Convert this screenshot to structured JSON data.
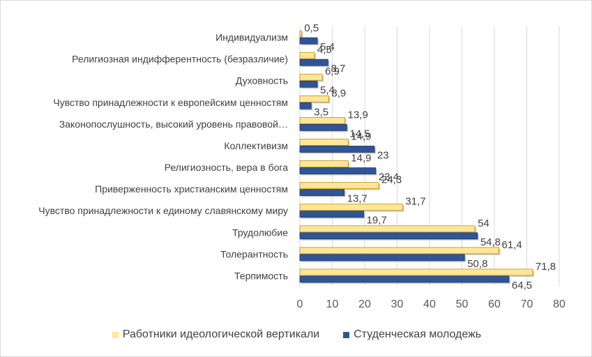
{
  "chart_data": {
    "type": "bar",
    "orientation": "horizontal",
    "categories": [
      "Терпимость",
      "Толерантность",
      "Трудолюбие",
      "Чувство принадлежности к единому славянскому миру",
      "Приверженность христианским ценностям",
      "Религиозность, вера в бога",
      "Коллективизм",
      "Законопослушность, высокий уровень правовой…",
      "Чувство принадлежности к европейским ценностям",
      "Духовность",
      "Религиозная индифферентность (безразличие)",
      "Индивидуализм"
    ],
    "series": [
      {
        "name": "Работники идеологической вертикали",
        "color": "#FFE699",
        "values": [
          71.8,
          61.4,
          54,
          31.7,
          24.3,
          14.9,
          14.9,
          13.9,
          8.9,
          6.9,
          4.5,
          0.5
        ],
        "labels": [
          "71,8",
          "61,4",
          "54",
          "31,7",
          "24,3",
          "14,9",
          "14,9",
          "13,9",
          "8,9",
          "6,9",
          "4,5",
          "0,5"
        ]
      },
      {
        "name": "Студенческая молодежь",
        "color": "#2F5597",
        "values": [
          64.5,
          50.8,
          54.8,
          19.7,
          13.7,
          23.4,
          23,
          14.5,
          3.5,
          5.4,
          8.7,
          5.4
        ],
        "labels": [
          "64,5",
          "50,8",
          "54,8",
          "19,7",
          "13,7",
          "23,4",
          "23",
          "14,5",
          "3,5",
          "5,4",
          "8,7",
          "5,4"
        ]
      }
    ],
    "xlim": [
      0,
      80
    ],
    "xticks": [
      "0",
      "10",
      "20",
      "30",
      "40",
      "50",
      "60",
      "70",
      "80"
    ],
    "grid": true,
    "legend_position": "bottom"
  }
}
